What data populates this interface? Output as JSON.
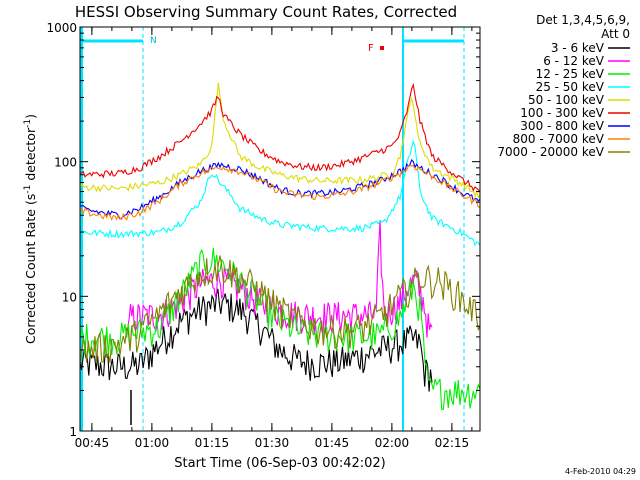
{
  "chart_data": {
    "type": "line",
    "title": "HESSI Observing Summary Count Rates, Corrected",
    "xlabel": "Start Time (06-Sep-03 00:42:02)",
    "ylabel_main": "Corrected Count Rate (s",
    "ylabel_sup1": "-1",
    "ylabel_mid": " detector",
    "ylabel_sup2": "-1",
    "ylabel_end": ")",
    "x_range_minutes": [
      0,
      100
    ],
    "ylim": [
      1,
      1000
    ],
    "yscale": "log",
    "x_ticks": [
      {
        "label": "00:45",
        "t": 2.97
      },
      {
        "label": "01:00",
        "t": 17.97
      },
      {
        "label": "01:15",
        "t": 32.97
      },
      {
        "label": "01:30",
        "t": 47.97
      },
      {
        "label": "01:45",
        "t": 62.97
      },
      {
        "label": "02:00",
        "t": 77.97
      },
      {
        "label": "02:15",
        "t": 92.97
      }
    ],
    "y_ticks": [
      {
        "label": "1",
        "v": 1
      },
      {
        "label": "10",
        "v": 10
      },
      {
        "label": "100",
        "v": 100
      },
      {
        "label": "1000",
        "v": 1000
      }
    ],
    "legend_placement": "right",
    "legend_header": [
      "Det 1,3,4,5,6,9,",
      "Att 0"
    ],
    "series": [
      {
        "name": "3 - 6 keV",
        "color": "#000000",
        "points": [
          [
            0,
            3.2
          ],
          [
            10,
            3.0
          ],
          [
            15,
            3.1
          ],
          [
            20,
            4.5
          ],
          [
            25,
            6.5
          ],
          [
            30,
            8.0
          ],
          [
            35,
            9.0
          ],
          [
            40,
            8.0
          ],
          [
            45,
            6.0
          ],
          [
            50,
            4.0
          ],
          [
            55,
            3.3
          ],
          [
            60,
            3.2
          ],
          [
            65,
            3.3
          ],
          [
            70,
            3.6
          ],
          [
            75,
            4.0
          ],
          [
            80,
            4.5
          ],
          [
            83,
            4.8
          ],
          [
            85,
            4.5
          ],
          [
            86,
            2.8
          ],
          [
            88,
            2.6
          ]
        ]
      },
      {
        "name": "6 - 12 keV",
        "color": "#ff00ff",
        "points": [
          [
            12,
            5.0
          ],
          [
            12.5,
            7.0
          ],
          [
            20,
            7.3
          ],
          [
            25,
            9.0
          ],
          [
            30,
            12.5
          ],
          [
            35,
            13.5
          ],
          [
            40,
            11.5
          ],
          [
            45,
            9.0
          ],
          [
            50,
            7.8
          ],
          [
            55,
            7.3
          ],
          [
            60,
            7.2
          ],
          [
            65,
            7.2
          ],
          [
            74,
            7.3
          ],
          [
            75,
            30
          ],
          [
            76,
            7.4
          ],
          [
            80,
            9.0
          ],
          [
            82,
            12
          ],
          [
            84,
            13
          ],
          [
            86,
            9.0
          ],
          [
            87,
            6.0
          ],
          [
            88,
            5.0
          ]
        ]
      },
      {
        "name": "12 - 25 keV",
        "color": "#00ee00",
        "points": [
          [
            0,
            5.0
          ],
          [
            10,
            5.0
          ],
          [
            20,
            6.0
          ],
          [
            25,
            10
          ],
          [
            30,
            17
          ],
          [
            33,
            19
          ],
          [
            36,
            17
          ],
          [
            40,
            13
          ],
          [
            45,
            9.0
          ],
          [
            50,
            6.5
          ],
          [
            55,
            5.5
          ],
          [
            60,
            5.2
          ],
          [
            70,
            5.0
          ],
          [
            75,
            5.2
          ],
          [
            80,
            7.0
          ],
          [
            82,
            10
          ],
          [
            83.5,
            12
          ],
          [
            85,
            8.0
          ],
          [
            86,
            4.0
          ],
          [
            87,
            2.0
          ],
          [
            100,
            2.0
          ]
        ]
      },
      {
        "name": "25 - 50 keV",
        "color": "#00ffff",
        "points": [
          [
            0,
            30
          ],
          [
            10,
            29
          ],
          [
            20,
            30
          ],
          [
            25,
            35
          ],
          [
            30,
            50
          ],
          [
            33,
            85
          ],
          [
            35,
            70
          ],
          [
            38,
            55
          ],
          [
            40,
            45
          ],
          [
            45,
            38
          ],
          [
            50,
            34
          ],
          [
            60,
            32
          ],
          [
            70,
            32
          ],
          [
            76,
            35
          ],
          [
            80,
            55
          ],
          [
            82,
            100
          ],
          [
            83.5,
            150
          ],
          [
            85,
            60
          ],
          [
            88,
            38
          ],
          [
            95,
            30
          ],
          [
            100,
            24
          ]
        ]
      },
      {
        "name": "50 - 100 keV",
        "color": "#dddd00",
        "points": [
          [
            0,
            65
          ],
          [
            10,
            63
          ],
          [
            20,
            70
          ],
          [
            25,
            80
          ],
          [
            30,
            95
          ],
          [
            33,
            130
          ],
          [
            34.5,
            380
          ],
          [
            36,
            200
          ],
          [
            40,
            110
          ],
          [
            45,
            90
          ],
          [
            50,
            80
          ],
          [
            55,
            75
          ],
          [
            60,
            72
          ],
          [
            70,
            73
          ],
          [
            74,
            76
          ],
          [
            78,
            82
          ],
          [
            80,
            110
          ],
          [
            83,
            320
          ],
          [
            84.5,
            150
          ],
          [
            88,
            90
          ],
          [
            95,
            70
          ],
          [
            100,
            55
          ]
        ]
      },
      {
        "name": "100 - 300 keV",
        "color": "#ee0000",
        "points": [
          [
            0,
            80
          ],
          [
            10,
            82
          ],
          [
            15,
            90
          ],
          [
            20,
            110
          ],
          [
            25,
            140
          ],
          [
            30,
            190
          ],
          [
            33,
            240
          ],
          [
            34.5,
            310
          ],
          [
            36,
            220
          ],
          [
            40,
            160
          ],
          [
            45,
            120
          ],
          [
            50,
            100
          ],
          [
            55,
            92
          ],
          [
            60,
            90
          ],
          [
            65,
            95
          ],
          [
            70,
            105
          ],
          [
            75,
            120
          ],
          [
            78,
            130
          ],
          [
            80,
            160
          ],
          [
            82,
            250
          ],
          [
            83.3,
            380
          ],
          [
            85,
            200
          ],
          [
            88,
            110
          ],
          [
            95,
            75
          ],
          [
            100,
            60
          ]
        ]
      },
      {
        "name": "300 - 800 keV",
        "color": "#0000ff",
        "points": [
          [
            0,
            45
          ],
          [
            5,
            42
          ],
          [
            10,
            40
          ],
          [
            15,
            45
          ],
          [
            20,
            55
          ],
          [
            25,
            70
          ],
          [
            30,
            85
          ],
          [
            35,
            95
          ],
          [
            40,
            88
          ],
          [
            45,
            75
          ],
          [
            50,
            62
          ],
          [
            55,
            58
          ],
          [
            60,
            58
          ],
          [
            65,
            60
          ],
          [
            70,
            65
          ],
          [
            75,
            72
          ],
          [
            80,
            85
          ],
          [
            83,
            98
          ],
          [
            85,
            90
          ],
          [
            90,
            75
          ],
          [
            95,
            60
          ],
          [
            100,
            50
          ]
        ]
      },
      {
        "name": "800 - 7000 keV",
        "color": "#ff8000",
        "points": [
          [
            0,
            43
          ],
          [
            5,
            40
          ],
          [
            10,
            38
          ],
          [
            15,
            42
          ],
          [
            20,
            52
          ],
          [
            25,
            68
          ],
          [
            30,
            82
          ],
          [
            35,
            92
          ],
          [
            40,
            85
          ],
          [
            45,
            72
          ],
          [
            50,
            60
          ],
          [
            55,
            56
          ],
          [
            60,
            55
          ],
          [
            65,
            57
          ],
          [
            70,
            62
          ],
          [
            75,
            70
          ],
          [
            80,
            82
          ],
          [
            83,
            95
          ],
          [
            85,
            88
          ],
          [
            90,
            72
          ],
          [
            95,
            58
          ],
          [
            100,
            48
          ]
        ]
      },
      {
        "name": "7000 - 20000 keV",
        "color": "#808000",
        "points": [
          [
            0,
            4.0
          ],
          [
            5,
            4.2
          ],
          [
            10,
            4.5
          ],
          [
            15,
            5.5
          ],
          [
            20,
            7.5
          ],
          [
            25,
            11
          ],
          [
            30,
            15
          ],
          [
            35,
            17
          ],
          [
            40,
            14
          ],
          [
            45,
            11
          ],
          [
            50,
            8.0
          ],
          [
            55,
            6.5
          ],
          [
            60,
            5.8
          ],
          [
            65,
            5.6
          ],
          [
            70,
            5.8
          ],
          [
            75,
            7.0
          ],
          [
            80,
            10
          ],
          [
            85,
            14
          ],
          [
            90,
            13
          ],
          [
            95,
            10
          ],
          [
            100,
            7.0
          ]
        ]
      }
    ],
    "annotations": {
      "n_label": "N",
      "f_label": "F"
    },
    "footer_date": "4-Feb-2010 04:29"
  }
}
